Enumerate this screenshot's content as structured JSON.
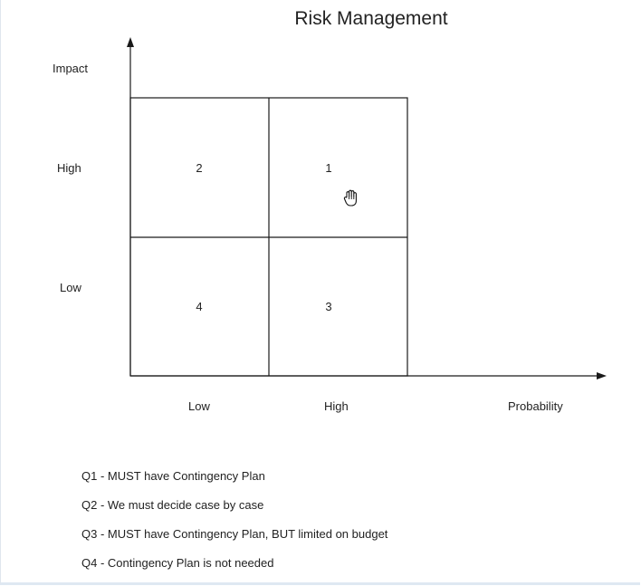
{
  "title": "Risk Management",
  "y_axis": {
    "label": "Impact",
    "ticks": [
      "High",
      "Low"
    ]
  },
  "x_axis": {
    "label": "Probability",
    "ticks": [
      "Low",
      "High"
    ]
  },
  "quadrants": {
    "top_left": "2",
    "top_right": "1",
    "bottom_left": "4",
    "bottom_right": "3"
  },
  "legend": [
    "Q1 - MUST have Contingency Plan",
    "Q2 - We must decide case by case",
    "Q3 - MUST have Contingency Plan, BUT limited on budget",
    "Q4 - Contingency Plan is not needed"
  ],
  "icons": {
    "cursor": "hand-grab-cursor-icon"
  },
  "colors": {
    "line": "#1a1a1a",
    "text": "#222222"
  }
}
